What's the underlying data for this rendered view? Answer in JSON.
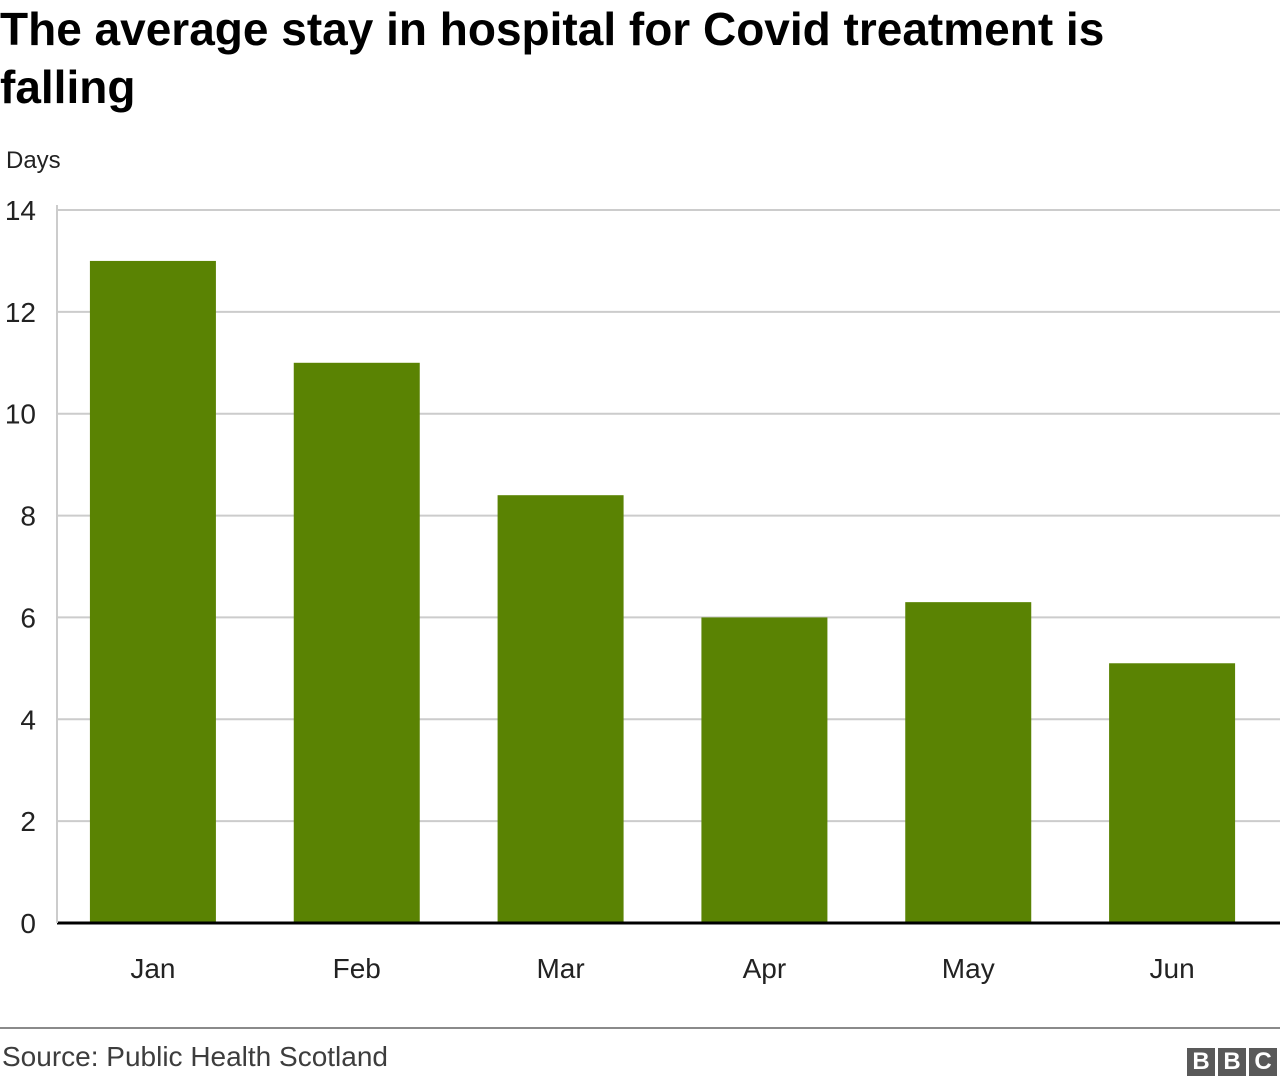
{
  "chart_data": {
    "type": "bar",
    "title": "The average stay in hospital for Covid treatment is falling",
    "ylabel": "Days",
    "categories": [
      "Jan",
      "Feb",
      "Mar",
      "Apr",
      "May",
      "Jun"
    ],
    "values": [
      13,
      11,
      8.4,
      6,
      6.3,
      5.1
    ],
    "ylim": [
      0,
      14
    ],
    "yticks": [
      "0",
      "2",
      "4",
      "6",
      "8",
      "10",
      "12",
      "14"
    ],
    "grid": true,
    "bar_color": "#5a8303",
    "source": "Source: Public Health Scotland"
  },
  "branding": {
    "logo_text": "BBC",
    "logo_letters": [
      "B",
      "B",
      "C"
    ]
  }
}
